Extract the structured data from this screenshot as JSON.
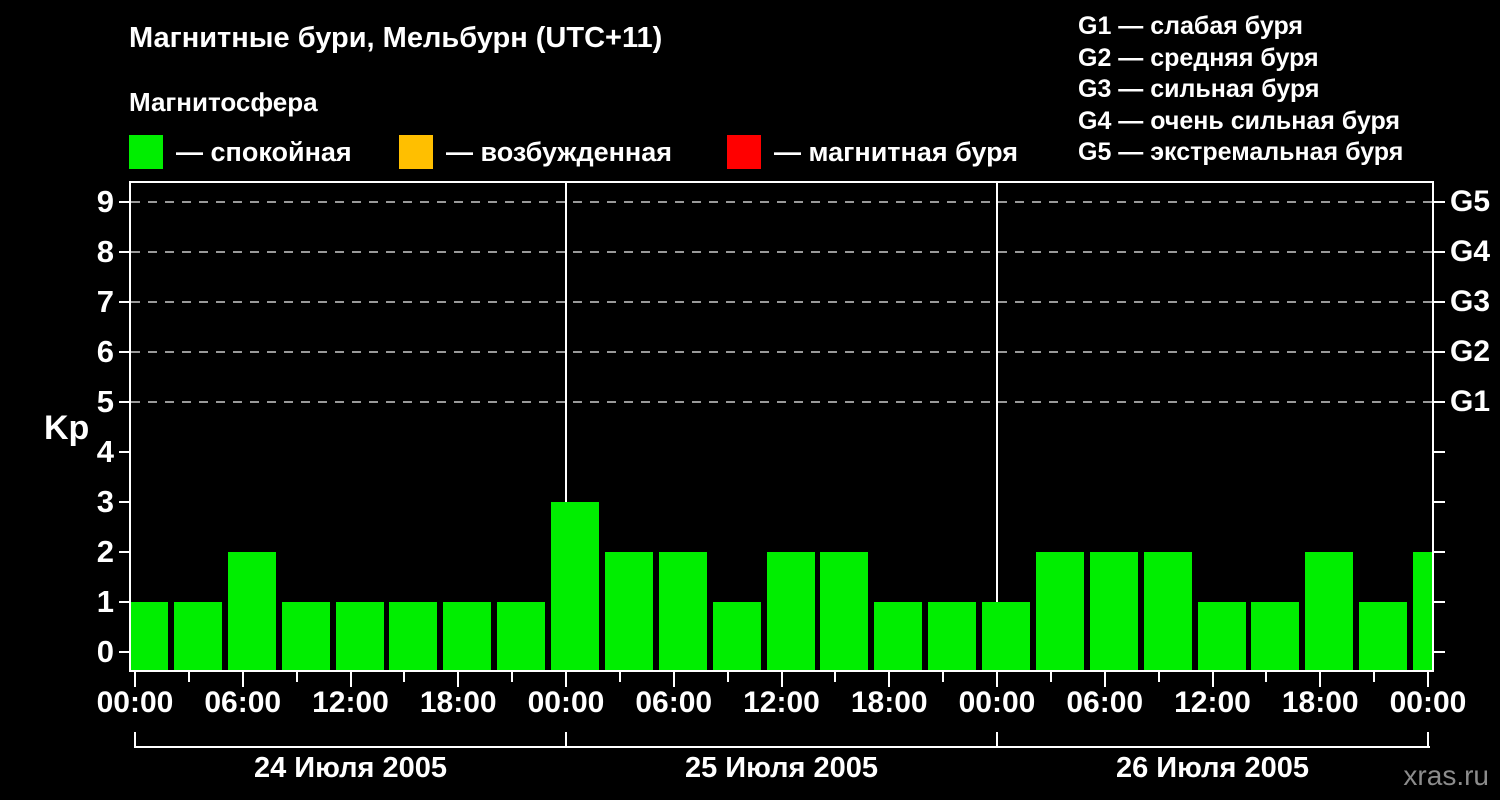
{
  "header": {
    "title": "Магнитные бури, Мельбурн (UTC+11)",
    "subtitle": "Магнитосфера"
  },
  "legend": {
    "items": [
      {
        "key": "quiet",
        "label": "— спокойная",
        "color": "#00ee00"
      },
      {
        "key": "active",
        "label": "— возбужденная",
        "color": "#ffbf00"
      },
      {
        "key": "storm",
        "label": "— магнитная буря",
        "color": "#ff0000"
      }
    ]
  },
  "storm_scale_legend": {
    "items": [
      {
        "level": "G1",
        "text": "G1 — слабая буря"
      },
      {
        "level": "G2",
        "text": "G2 — средняя буря"
      },
      {
        "level": "G3",
        "text": "G3 — сильная буря"
      },
      {
        "level": "G4",
        "text": "G4 — очень сильная буря"
      },
      {
        "level": "G5",
        "text": "G5 — экстремальная буря"
      }
    ]
  },
  "chart_data": {
    "type": "bar",
    "title": "Магнитные бури, Мельбурн (UTC+11)",
    "ylabel": "Kp",
    "ylim": [
      0,
      9
    ],
    "yticks": [
      0,
      1,
      2,
      3,
      4,
      5,
      6,
      7,
      8,
      9
    ],
    "grid_levels": [
      5,
      6,
      7,
      8,
      9
    ],
    "grid": "dashed-horizontal",
    "legend_position": "top-left",
    "right_axis_labels": [
      {
        "kp": 5,
        "label": "G1"
      },
      {
        "kp": 6,
        "label": "G2"
      },
      {
        "kp": 7,
        "label": "G3"
      },
      {
        "kp": 8,
        "label": "G4"
      },
      {
        "kp": 9,
        "label": "G5"
      }
    ],
    "x_interval_hours": 3,
    "x_major_tick_hours": 6,
    "x_hour_labels": [
      "00:00",
      "06:00",
      "12:00",
      "18:00"
    ],
    "days": [
      {
        "date": "24 Июля 2005",
        "values": [
          1,
          1,
          2,
          1,
          1,
          1,
          1,
          1
        ]
      },
      {
        "date": "25 Июля 2005",
        "values": [
          3,
          2,
          2,
          1,
          2,
          2,
          1,
          1
        ]
      },
      {
        "date": "26 Июля 2005",
        "values": [
          1,
          2,
          2,
          2,
          1,
          1,
          2,
          1
        ]
      }
    ],
    "next_interval_partial_value": 2,
    "color_thresholds": {
      "quiet_kp_max": 3,
      "active_kp_max": 4
    }
  },
  "watermark": "xras.ru",
  "colors": {
    "background": "#000000",
    "foreground": "#ffffff",
    "quiet": "#00ee00",
    "active": "#ffbf00",
    "storm": "#ff0000",
    "grid": "#999999",
    "axis": "#ffffff",
    "watermark": "#8c8c8c"
  }
}
